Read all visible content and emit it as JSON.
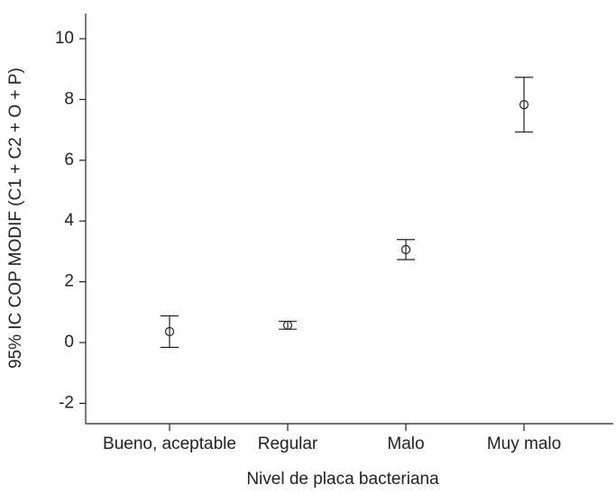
{
  "chart_data": {
    "type": "errorbar",
    "x_label": "Nivel de placa bacteriana",
    "y_label": "95% IC COP MODIF (C1 + C2 + O + P)",
    "categories": [
      "Bueno, aceptable",
      "Regular",
      "Malo",
      "Muy malo"
    ],
    "values": [
      0.36,
      0.57,
      3.06,
      7.83
    ],
    "errors": [
      0.52,
      0.13,
      0.33,
      0.9
    ],
    "color": "#222222",
    "ylim": [
      -2.67,
      10.83
    ],
    "yticks": [
      -2,
      0,
      2,
      4,
      6,
      8,
      10
    ]
  }
}
